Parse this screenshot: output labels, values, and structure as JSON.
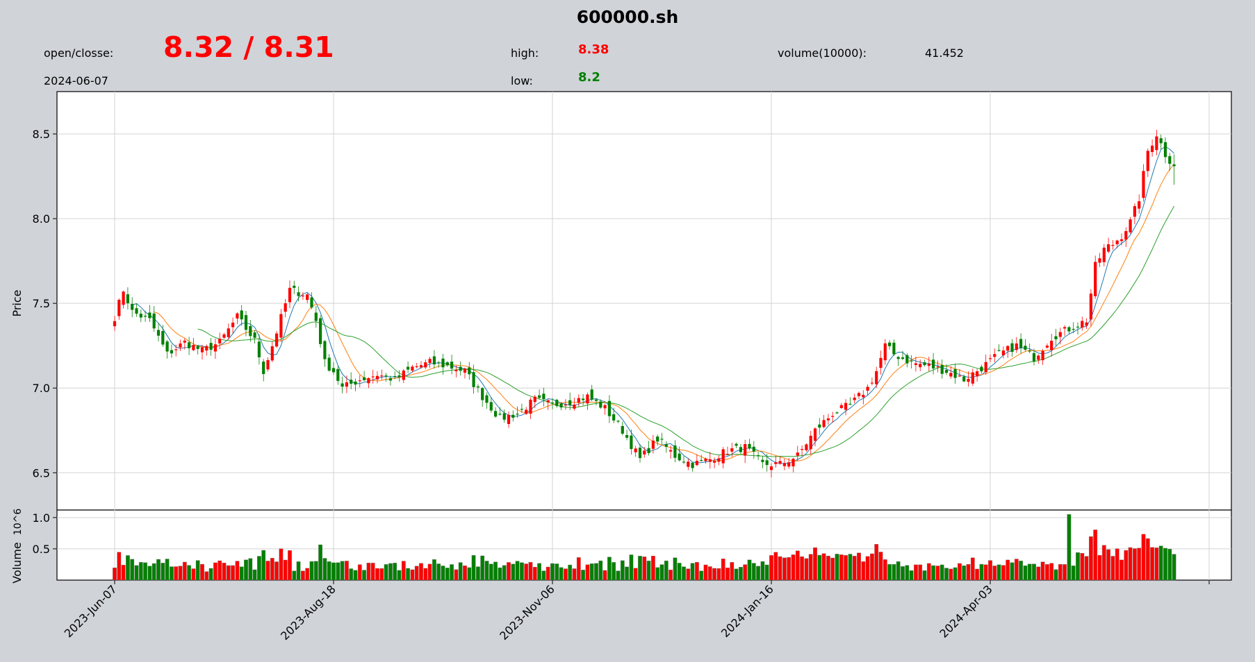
{
  "header": {
    "title": "600000.sh",
    "open_close_label": "open/closse:",
    "open_close_value": "8.32 / 8.31",
    "date": "2024-06-07",
    "high_label": "high:",
    "high_value": "8.38",
    "low_label": "low:",
    "low_value": "8.2",
    "volume_label": "volume(10000):",
    "volume_value": "41.452"
  },
  "colors": {
    "up": "#ff0000",
    "down": "#008000",
    "ma1": "#1f77b4",
    "ma2": "#ff7f0e",
    "ma3": "#2ca02c",
    "volume_edge": "#808080"
  },
  "chart_data": {
    "type": "candlestick",
    "price_axis": {
      "label": "Price",
      "ylim": [
        6.28,
        8.75
      ],
      "ticks": [
        6.5,
        7.0,
        7.5,
        8.0,
        8.5
      ]
    },
    "volume_axis": {
      "label": "Volume",
      "multiplier": "10^6",
      "ylim": [
        0,
        1.12
      ],
      "ticks": [
        0.5,
        1.0
      ],
      "tick_labels": [
        "0.5",
        "1.0"
      ]
    },
    "x_ticks": [
      {
        "label": "2023-Jun-07",
        "index": 0
      },
      {
        "label": "2023-Aug-18",
        "index": 50
      },
      {
        "label": "2023-Nov-06",
        "index": 100
      },
      {
        "label": "2024-Jan-16",
        "index": 150
      },
      {
        "label": "2024-Apr-03",
        "index": 200
      },
      {
        "label": "",
        "index": 250
      }
    ],
    "total_bars": 243,
    "moving_averages": [
      5,
      10,
      20
    ],
    "close_anchors": [
      [
        0,
        7.42
      ],
      [
        2,
        7.58
      ],
      [
        4,
        7.45
      ],
      [
        8,
        7.4
      ],
      [
        12,
        7.2
      ],
      [
        16,
        7.27
      ],
      [
        20,
        7.22
      ],
      [
        24,
        7.27
      ],
      [
        28,
        7.42
      ],
      [
        32,
        7.28
      ],
      [
        34,
        7.1
      ],
      [
        36,
        7.25
      ],
      [
        40,
        7.58
      ],
      [
        44,
        7.55
      ],
      [
        46,
        7.4
      ],
      [
        48,
        7.15
      ],
      [
        50,
        7.1
      ],
      [
        52,
        7.0
      ],
      [
        56,
        7.05
      ],
      [
        60,
        7.08
      ],
      [
        64,
        7.05
      ],
      [
        68,
        7.12
      ],
      [
        72,
        7.15
      ],
      [
        76,
        7.13
      ],
      [
        80,
        7.1
      ],
      [
        84,
        6.95
      ],
      [
        88,
        6.82
      ],
      [
        92,
        6.85
      ],
      [
        96,
        6.93
      ],
      [
        100,
        6.9
      ],
      [
        104,
        6.92
      ],
      [
        108,
        6.95
      ],
      [
        112,
        6.88
      ],
      [
        116,
        6.75
      ],
      [
        120,
        6.58
      ],
      [
        124,
        6.7
      ],
      [
        128,
        6.6
      ],
      [
        132,
        6.55
      ],
      [
        136,
        6.58
      ],
      [
        140,
        6.63
      ],
      [
        144,
        6.65
      ],
      [
        148,
        6.55
      ],
      [
        152,
        6.55
      ],
      [
        156,
        6.6
      ],
      [
        160,
        6.75
      ],
      [
        164,
        6.85
      ],
      [
        168,
        6.9
      ],
      [
        172,
        7.0
      ],
      [
        174,
        7.1
      ],
      [
        176,
        7.25
      ],
      [
        178,
        7.2
      ],
      [
        182,
        7.15
      ],
      [
        186,
        7.13
      ],
      [
        190,
        7.1
      ],
      [
        194,
        7.05
      ],
      [
        198,
        7.12
      ],
      [
        202,
        7.2
      ],
      [
        206,
        7.25
      ],
      [
        210,
        7.18
      ],
      [
        214,
        7.3
      ],
      [
        218,
        7.35
      ],
      [
        222,
        7.4
      ],
      [
        224,
        7.72
      ],
      [
        226,
        7.82
      ],
      [
        228,
        7.85
      ],
      [
        230,
        7.9
      ],
      [
        232,
        7.98
      ],
      [
        234,
        8.12
      ],
      [
        236,
        8.4
      ],
      [
        238,
        8.5
      ],
      [
        240,
        8.38
      ],
      [
        242,
        8.31
      ]
    ],
    "last_bar": {
      "date": "2024-06-07",
      "open": 8.32,
      "close": 8.31,
      "high": 8.38,
      "low": 8.2,
      "volume_10k": 41.452
    }
  }
}
